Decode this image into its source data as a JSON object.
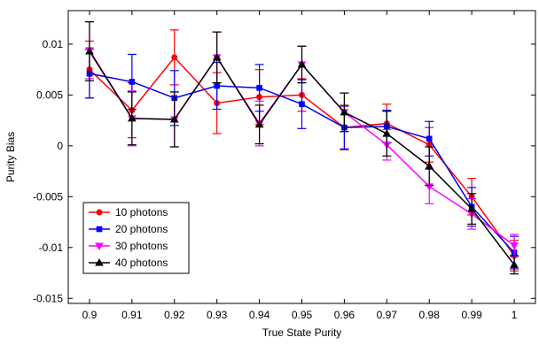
{
  "chart_data": {
    "type": "line",
    "title": "",
    "xlabel": "True State Purity",
    "ylabel": "Purity Bias",
    "xlim": [
      0.895,
      1.005
    ],
    "ylim": [
      -0.0155,
      0.0133
    ],
    "xticks": [
      0.9,
      0.91,
      0.92,
      0.93,
      0.94,
      0.95,
      0.96,
      0.97,
      0.98,
      0.99,
      1
    ],
    "xtick_labels": [
      "0.9",
      "0.91",
      "0.92",
      "0.93",
      "0.94",
      "0.95",
      "0.96",
      "0.97",
      "0.98",
      "0.99",
      "1"
    ],
    "yticks": [
      -0.015,
      -0.01,
      -0.005,
      0,
      0.005,
      0.01
    ],
    "ytick_labels": [
      "-0.015",
      "-0.01",
      "-0.005",
      "0",
      "0.005",
      "0.01"
    ],
    "grid": false,
    "legend_position": "lower-left",
    "x": [
      0.9,
      0.91,
      0.92,
      0.93,
      0.94,
      0.95,
      0.96,
      0.97,
      0.98,
      0.99,
      1
    ],
    "series": [
      {
        "name": "10 photons",
        "color": "#ff0000",
        "marker": "circle",
        "values": [
          0.0075,
          0.0035,
          0.0087,
          0.0042,
          0.0048,
          0.005,
          0.0018,
          0.0022,
          0.0001,
          -0.005,
          -0.0108
        ],
        "errors": [
          0.0028,
          0.0027,
          0.0027,
          0.003,
          0.0027,
          0.0016,
          0.0022,
          0.0019,
          0.0017,
          0.0018,
          0.0015
        ]
      },
      {
        "name": "20 photons",
        "color": "#0000ff",
        "marker": "square",
        "values": [
          0.0071,
          0.0063,
          0.0047,
          0.0059,
          0.0057,
          0.0041,
          0.0018,
          0.0019,
          0.0007,
          -0.006,
          -0.0105
        ],
        "errors": [
          0.0024,
          0.0027,
          0.0027,
          0.0023,
          0.0023,
          0.0024,
          0.0021,
          0.0016,
          0.0017,
          0.0019,
          0.0016
        ]
      },
      {
        "name": "30 photons",
        "color": "#ff00ff",
        "marker": "triangle-down",
        "values": [
          0.0094,
          0.0027,
          0.0026,
          0.0087,
          0.0022,
          0.008,
          0.0033,
          0.0001,
          -0.004,
          -0.0067,
          -0.0098
        ],
        "errors": [
          0.0028,
          0.0027,
          0.0027,
          0.0025,
          0.0022,
          0.0018,
          0.0019,
          0.0015,
          0.0017,
          0.0015,
          0.0011
        ]
      },
      {
        "name": "40 photons",
        "color": "#000000",
        "marker": "triangle-up",
        "values": [
          0.0093,
          0.0027,
          0.0026,
          0.0087,
          0.0021,
          0.008,
          0.0033,
          0.0012,
          -0.002,
          -0.0062,
          -0.0117
        ],
        "errors": [
          0.0029,
          0.0026,
          0.0027,
          0.0025,
          0.0019,
          0.0018,
          0.0019,
          0.0022,
          0.0019,
          0.0015,
          0.0009
        ]
      }
    ]
  }
}
